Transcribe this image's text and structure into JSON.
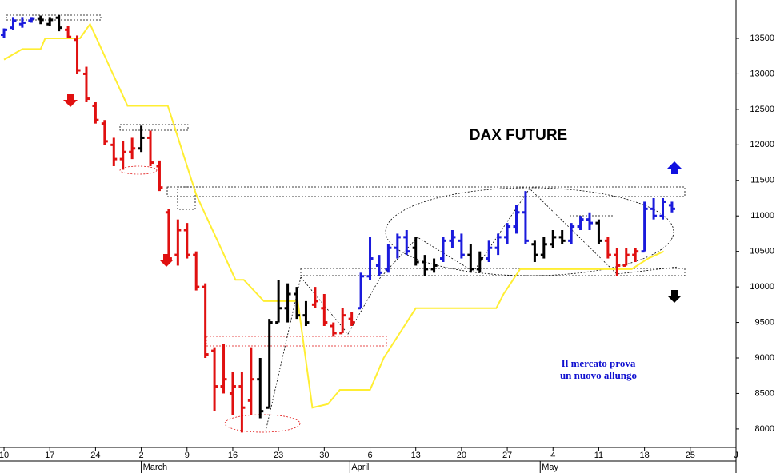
{
  "chart_data": {
    "type": "ohlc",
    "title": "DAX FUTURE",
    "annotation": [
      "Il mercato prova",
      "un nuovo allungo"
    ],
    "bars": {
      "x": [
        0,
        1,
        2,
        3,
        4,
        5,
        6,
        7,
        8,
        9,
        10,
        11,
        12,
        13,
        14,
        15,
        16,
        17,
        18,
        19,
        20,
        21,
        22,
        23,
        24,
        25,
        26,
        27,
        28,
        29,
        30,
        31,
        32,
        33,
        34,
        35,
        36,
        37,
        38,
        39,
        40,
        41,
        42,
        43,
        44,
        45,
        46,
        47,
        48,
        49,
        50,
        51,
        52,
        53,
        54,
        55,
        56,
        57,
        58,
        59,
        60,
        61,
        62,
        63,
        64,
        65,
        66,
        67,
        68,
        69,
        70,
        71,
        72,
        73
      ],
      "open": [
        13550,
        13650,
        13700,
        13750,
        13780,
        13700,
        13790,
        13620,
        13480,
        13000,
        12550,
        12300,
        12000,
        11800,
        11900,
        11950,
        12100,
        11700,
        11050,
        10450,
        10800,
        10450,
        10000,
        9100,
        8600,
        8500,
        8600,
        8400,
        8700,
        8300,
        9500,
        9700,
        9900,
        9600,
        9750,
        9700,
        9450,
        9350,
        9550,
        9700,
        10150,
        10300,
        10250,
        10550,
        10700,
        10550,
        10350,
        10250,
        10400,
        10650,
        10650,
        10450,
        10250,
        10400,
        10550,
        10700,
        10850,
        11050,
        10600,
        10450,
        10600,
        10700,
        10650,
        10850,
        10950,
        10900,
        10650,
        10450,
        10300,
        10450,
        10500,
        11100,
        11000,
        11150
      ],
      "high": [
        13640,
        13800,
        13800,
        13800,
        13820,
        13800,
        13830,
        13680,
        13540,
        13100,
        12600,
        12350,
        12100,
        12050,
        12100,
        12270,
        12200,
        11780,
        11100,
        10950,
        10900,
        10500,
        10050,
        9150,
        9200,
        8800,
        8800,
        9150,
        9000,
        9550,
        10100,
        10050,
        10000,
        9800,
        10000,
        9900,
        9500,
        9700,
        9650,
        10200,
        10700,
        10450,
        10600,
        10750,
        10800,
        10700,
        10450,
        10400,
        10700,
        10800,
        10750,
        10600,
        10500,
        10650,
        10750,
        10900,
        11150,
        11350,
        10650,
        10700,
        10800,
        10800,
        10900,
        11000,
        11050,
        10950,
        10700,
        10550,
        10550,
        10550,
        11200,
        11250,
        11250,
        11200
      ],
      "low": [
        13500,
        13620,
        13650,
        13720,
        13700,
        13680,
        13600,
        13500,
        13000,
        12600,
        12300,
        12000,
        11700,
        11650,
        11800,
        11900,
        11700,
        11350,
        10350,
        10300,
        10400,
        9950,
        9000,
        8250,
        8500,
        8200,
        7950,
        8200,
        8150,
        8300,
        9500,
        9500,
        9550,
        9450,
        9700,
        9450,
        9300,
        9350,
        9450,
        9700,
        10100,
        10150,
        10200,
        10400,
        10450,
        10300,
        10150,
        10200,
        10350,
        10550,
        10400,
        10200,
        10200,
        10350,
        10450,
        10600,
        10750,
        10600,
        10350,
        10400,
        10550,
        10600,
        10600,
        10800,
        10800,
        10600,
        10400,
        10150,
        10300,
        10350,
        10500,
        10950,
        10950,
        11050
      ],
      "close": [
        13620,
        13750,
        13720,
        13780,
        13760,
        13760,
        13650,
        13520,
        13050,
        12650,
        12350,
        12050,
        11800,
        11900,
        11950,
        12100,
        11750,
        11400,
        10400,
        10800,
        10450,
        10000,
        9050,
        8600,
        8700,
        8600,
        8300,
        8700,
        8250,
        9500,
        9700,
        9900,
        9600,
        9500,
        9800,
        9500,
        9350,
        9600,
        9500,
        10150,
        10400,
        10200,
        10550,
        10700,
        10500,
        10350,
        10250,
        10300,
        10650,
        10700,
        10450,
        10250,
        10400,
        10550,
        10700,
        10850,
        11050,
        10650,
        10450,
        10600,
        10700,
        10650,
        10850,
        10950,
        10900,
        10650,
        10450,
        10300,
        10450,
        10500,
        11100,
        11000,
        11200,
        11100
      ],
      "colors": [
        "#1a1adc",
        "#1a1adc",
        "#1a1adc",
        "#1a1adc",
        "#000000",
        "#000000",
        "#000000",
        "#e01010",
        "#e01010",
        "#e01010",
        "#e01010",
        "#e01010",
        "#e01010",
        "#e01010",
        "#e01010",
        "#000000",
        "#e01010",
        "#e01010",
        "#e01010",
        "#e01010",
        "#e01010",
        "#e01010",
        "#e01010",
        "#e01010",
        "#e01010",
        "#e01010",
        "#e01010",
        "#e01010",
        "#000000",
        "#000000",
        "#000000",
        "#000000",
        "#000000",
        "#000000",
        "#e01010",
        "#e01010",
        "#e01010",
        "#e01010",
        "#e01010",
        "#1a1adc",
        "#1a1adc",
        "#1a1adc",
        "#1a1adc",
        "#1a1adc",
        "#1a1adc",
        "#000000",
        "#000000",
        "#000000",
        "#1a1adc",
        "#1a1adc",
        "#1a1adc",
        "#000000",
        "#000000",
        "#1a1adc",
        "#1a1adc",
        "#1a1adc",
        "#1a1adc",
        "#1a1adc",
        "#000000",
        "#000000",
        "#000000",
        "#000000",
        "#1a1adc",
        "#1a1adc",
        "#1a1adc",
        "#000000",
        "#e01010",
        "#e01010",
        "#e01010",
        "#e01010",
        "#1a1adc",
        "#1a1adc",
        "#1a1adc",
        "#1a1adc"
      ]
    },
    "line": {
      "color": "#ffee33",
      "x": [
        0,
        2,
        4,
        4.5,
        8.3,
        9.4,
        13.5,
        17.9,
        21,
        25.3,
        26.2,
        28.4,
        32.1,
        33.7,
        35.4,
        36.7,
        40,
        41.5,
        45,
        53.8,
        54.6,
        56.4,
        68.6,
        70.4,
        72.1
      ],
      "values": [
        13200,
        13350,
        13350,
        13500,
        13500,
        13700,
        12550,
        12550,
        11300,
        10100,
        10100,
        9800,
        9800,
        8300,
        8350,
        8550,
        8550,
        9000,
        9700,
        9700,
        9900,
        10250,
        10250,
        10400,
        10500
      ]
    },
    "xlim": [
      -0.44,
      80
    ],
    "xticks": [
      0,
      {
        "value": 5,
        "label": "17"
      },
      {
        "value": 10,
        "label": "24"
      },
      {
        "value": 15,
        "label": "2"
      },
      {
        "value": 20,
        "label": "9"
      },
      {
        "value": 25,
        "label": "16"
      },
      {
        "value": 30,
        "label": "23"
      },
      {
        "value": 35,
        "label": "30"
      },
      {
        "value": 40,
        "label": "6"
      },
      {
        "value": 45,
        "label": "13"
      },
      {
        "value": 50,
        "label": "20"
      },
      {
        "value": 55,
        "label": "27"
      },
      {
        "value": 60,
        "label": "4"
      },
      {
        "value": 65,
        "label": "11"
      },
      {
        "value": 70,
        "label": "18"
      },
      {
        "value": 75,
        "label": "25"
      },
      {
        "value": 80,
        "label": "J"
      }
    ],
    "x_first_tick_label": "10",
    "months": [
      {
        "value": 15,
        "label": "March"
      },
      {
        "value": 37.8,
        "label": "April"
      },
      {
        "value": 58.6,
        "label": "May"
      }
    ],
    "ylim": [
      7740,
      14040
    ],
    "yticks": [
      8000,
      8500,
      9000,
      9500,
      10000,
      10500,
      11000,
      11500,
      12000,
      12500,
      13000,
      13500
    ]
  }
}
